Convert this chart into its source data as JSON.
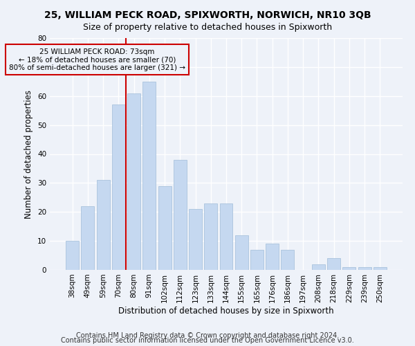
{
  "title": "25, WILLIAM PECK ROAD, SPIXWORTH, NORWICH, NR10 3QB",
  "subtitle": "Size of property relative to detached houses in Spixworth",
  "xlabel": "Distribution of detached houses by size in Spixworth",
  "ylabel": "Number of detached properties",
  "categories": [
    "38sqm",
    "49sqm",
    "59sqm",
    "70sqm",
    "80sqm",
    "91sqm",
    "102sqm",
    "112sqm",
    "123sqm",
    "133sqm",
    "144sqm",
    "155sqm",
    "165sqm",
    "176sqm",
    "186sqm",
    "197sqm",
    "208sqm",
    "218sqm",
    "229sqm",
    "239sqm",
    "250sqm"
  ],
  "values": [
    10,
    22,
    31,
    57,
    61,
    65,
    29,
    38,
    21,
    23,
    23,
    12,
    7,
    9,
    7,
    0,
    2,
    4,
    1,
    1,
    1
  ],
  "bar_color": "#c5d8f0",
  "bar_edge_color": "#a0bcd8",
  "vline_x": 3.5,
  "vline_color": "#cc0000",
  "annotation_line1": "25 WILLIAM PECK ROAD: 73sqm",
  "annotation_line2": "← 18% of detached houses are smaller (70)",
  "annotation_line3": "80% of semi-detached houses are larger (321) →",
  "annotation_box_color": "#cc0000",
  "annotation_text_color": "#000000",
  "ylim": [
    0,
    80
  ],
  "yticks": [
    0,
    10,
    20,
    30,
    40,
    50,
    60,
    70,
    80
  ],
  "footnote1": "Contains HM Land Registry data © Crown copyright and database right 2024.",
  "footnote2": "Contains public sector information licensed under the Open Government Licence v3.0.",
  "background_color": "#eef2f9",
  "grid_color": "#ffffff",
  "title_fontsize": 10,
  "subtitle_fontsize": 9,
  "axis_label_fontsize": 8.5,
  "tick_fontsize": 7.5,
  "annotation_fontsize": 7.5,
  "footnote_fontsize": 7
}
